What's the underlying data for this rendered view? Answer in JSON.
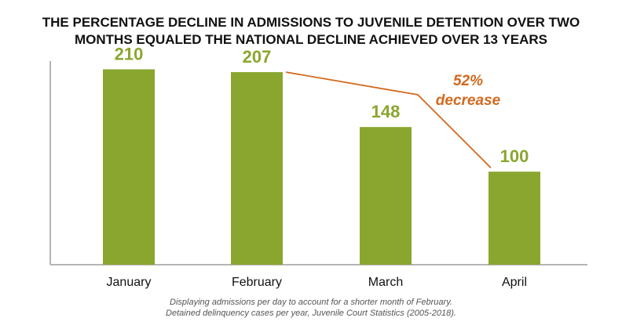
{
  "title_lines": [
    "THE PERCENTAGE DECLINE IN ADMISSIONS TO JUVENILE DETENTION OVER TWO",
    "MONTHS EQUALED THE NATIONAL DECLINE ACHIEVED OVER 13 YEARS"
  ],
  "chart_data": {
    "type": "bar",
    "title": "THE PERCENTAGE DECLINE IN ADMISSIONS TO JUVENILE DETENTION OVER TWO MONTHS EQUALED THE NATIONAL DECLINE ACHIEVED OVER 13 YEARS",
    "categories": [
      "January",
      "February",
      "March",
      "April"
    ],
    "values": [
      210,
      207,
      148,
      100
    ],
    "data_labels": [
      "210",
      "207",
      "148",
      "100"
    ],
    "xlabel": "",
    "ylabel": "",
    "ylim": [
      0,
      250
    ],
    "grid": false,
    "legend": "none",
    "annotation": {
      "line1": "52%",
      "line2": "decrease",
      "from_category": "February",
      "to_category": "April"
    }
  },
  "colors": {
    "bar": "#8aa62f",
    "label": "#8aa62f",
    "annotation": "#d2691e",
    "axis": "#b5b5b5",
    "text": "#111111",
    "caption": "#555555"
  },
  "caption_lines": [
    "Displaying admissions per day to account for a shorter month of February.",
    "Detained delinquency cases per year, Juvenile Court Statistics (2005-2018)."
  ]
}
